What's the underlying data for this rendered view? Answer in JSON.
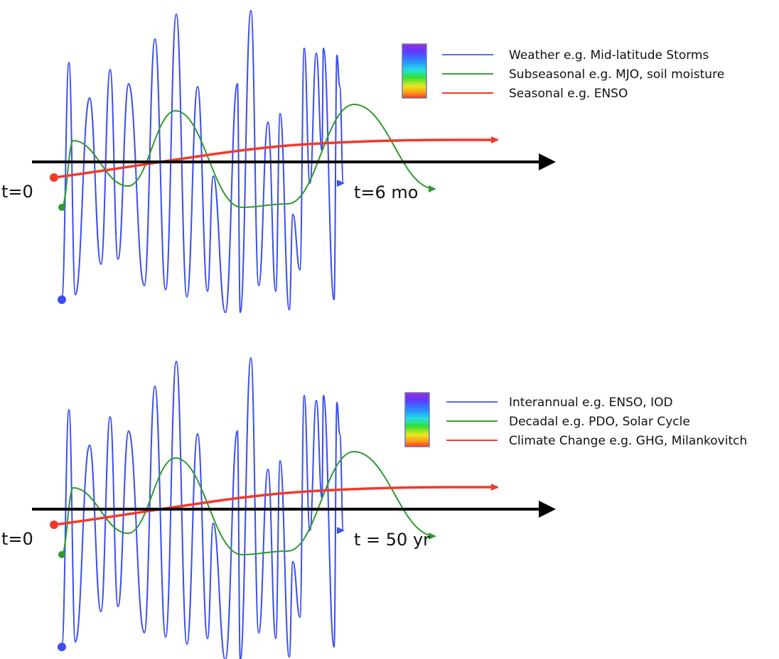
{
  "colors": {
    "blue": "#3a4ef5",
    "green": "#2f9a2f",
    "red": "#f2392a",
    "axis": "#000000"
  },
  "panels": [
    {
      "start_label": "t=0",
      "end_label": "t=6 mo",
      "legend": [
        {
          "text": "Weather e.g. Mid-latitude Storms",
          "color": "#5a6ef0"
        },
        {
          "text": "Subseasonal e.g. MJO, soil moisture",
          "color": "#3aa03a"
        },
        {
          "text": "Seasonal e.g. ENSO",
          "color": "#f2392a"
        }
      ]
    },
    {
      "start_label": "t=0",
      "end_label": "t = 50 yr",
      "legend": [
        {
          "text": "Interannual e.g. ENSO, IOD",
          "color": "#5a6ef0"
        },
        {
          "text": "Decadal e.g. PDO, Solar Cycle",
          "color": "#3aa03a"
        },
        {
          "text": "Climate Change e.g. GHG, Milankovitch",
          "color": "#f2392a"
        }
      ]
    }
  ]
}
